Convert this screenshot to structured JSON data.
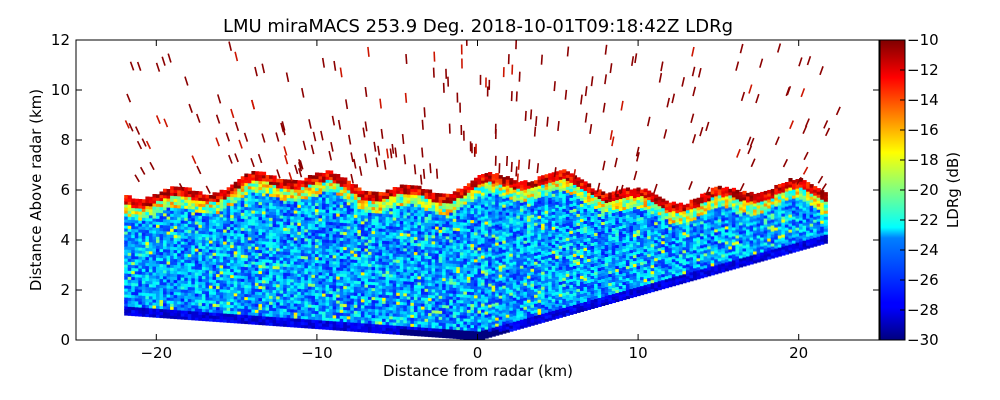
{
  "chart_data": {
    "type": "heatmap",
    "title": "LMU miraMACS 253.9 Deg. 2018-10-01T09:18:42Z  LDRg",
    "xlabel": "Distance from radar (km)",
    "ylabel": "Distance Above radar  (km)",
    "xlim": [
      -25,
      25
    ],
    "ylim": [
      0,
      12
    ],
    "xticks": [
      -20,
      -10,
      0,
      10,
      20
    ],
    "xtick_labels": [
      "−20",
      "−10",
      "0",
      "10",
      "20"
    ],
    "yticks": [
      0,
      2,
      4,
      6,
      8,
      10,
      12
    ],
    "ytick_labels": [
      "0",
      "2",
      "4",
      "6",
      "8",
      "10",
      "12"
    ],
    "colorbar": {
      "label": "LDRg (dB)",
      "range": [
        -30,
        -10
      ],
      "ticks": [
        -30,
        -28,
        -26,
        -24,
        -22,
        -20,
        -18,
        -16,
        -14,
        -12,
        -10
      ],
      "tick_labels": [
        "−30",
        "−28",
        "−26",
        "−24",
        "−22",
        "−20",
        "−18",
        "−16",
        "−14",
        "−12",
        "−10"
      ],
      "colormap": "jet"
    },
    "scan": {
      "left_edge": [
        -22,
        1
      ],
      "right_edge": [
        21.7,
        3.9
      ],
      "cloud_top_km": 6.3,
      "max_range_km": 12
    }
  }
}
